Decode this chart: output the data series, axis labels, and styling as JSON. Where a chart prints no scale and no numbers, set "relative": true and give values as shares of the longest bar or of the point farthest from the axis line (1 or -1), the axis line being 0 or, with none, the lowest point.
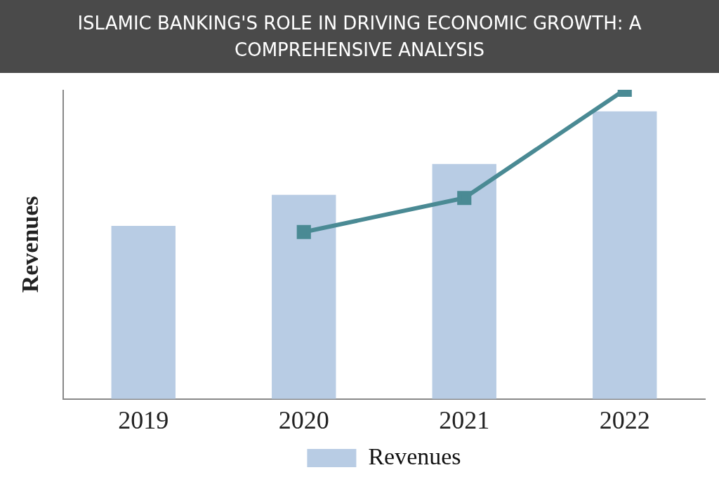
{
  "chart_data": {
    "type": "bar",
    "title": "ISLAMIC BANKING'S ROLE IN DRIVING ECONOMIC GROWTH: A COMPREHENSIVE ANALYSIS",
    "ylabel": "Revenues",
    "categories": [
      "2019",
      "2020",
      "2021",
      "2022"
    ],
    "relative": true,
    "legend": "bottom",
    "marker": "square",
    "series": [
      {
        "name": "Revenues",
        "color": "#b8cce4",
        "values": [
          0.56,
          0.66,
          0.76,
          0.93
        ]
      },
      {
        "type": "line",
        "color": "#4a8a94",
        "values": [
          null,
          0.54,
          0.65,
          1
        ]
      }
    ]
  }
}
